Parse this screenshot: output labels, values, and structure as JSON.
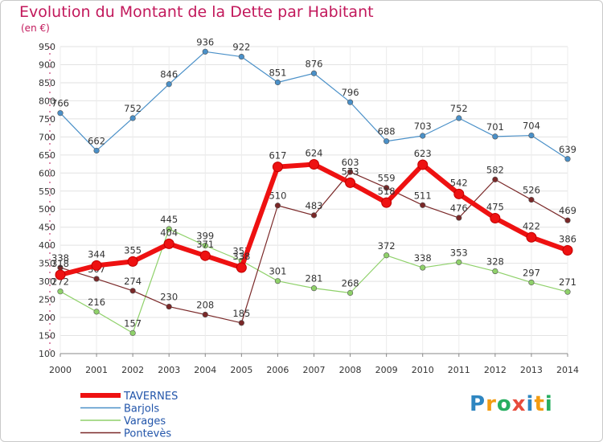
{
  "chart_data": {
    "type": "line",
    "title": "Evolution du Montant de la Dette par Habitant",
    "subtitle": "(en €)",
    "x": [
      2000,
      2001,
      2002,
      2003,
      2004,
      2005,
      2006,
      2007,
      2008,
      2009,
      2010,
      2011,
      2012,
      2013,
      2014
    ],
    "ylim": [
      100,
      950
    ],
    "yticks": [
      100,
      150,
      200,
      250,
      300,
      350,
      400,
      450,
      500,
      550,
      600,
      650,
      700,
      750,
      800,
      850,
      900,
      950
    ],
    "grid": true,
    "legend_position": "bottom-left",
    "series": [
      {
        "name": "TAVERNES",
        "color": "#ee1111",
        "values": [
          318,
          344,
          355,
          404,
          371,
          338,
          617,
          624,
          573,
          518,
          623,
          542,
          475,
          422,
          386
        ]
      },
      {
        "name": "Barjols",
        "color": "#4a90c8",
        "values": [
          766,
          662,
          752,
          846,
          936,
          922,
          851,
          876,
          796,
          688,
          703,
          752,
          701,
          704,
          639
        ]
      },
      {
        "name": "Varages",
        "color": "#8fd16a",
        "values": [
          272,
          216,
          157,
          445,
          399,
          357,
          301,
          281,
          268,
          372,
          338,
          353,
          328,
          297,
          271
        ]
      },
      {
        "name": "Pontevès",
        "color": "#7a2828",
        "values": [
          338,
          307,
          274,
          230,
          208,
          185,
          510,
          483,
          603,
          559,
          511,
          476,
          582,
          526,
          469
        ]
      }
    ]
  },
  "logo": {
    "text": "Proxiti",
    "colors": [
      "#2e86c1",
      "#f39c12",
      "#27ae60",
      "#e74c3c",
      "#2e86c1",
      "#f39c12",
      "#27ae60"
    ]
  }
}
